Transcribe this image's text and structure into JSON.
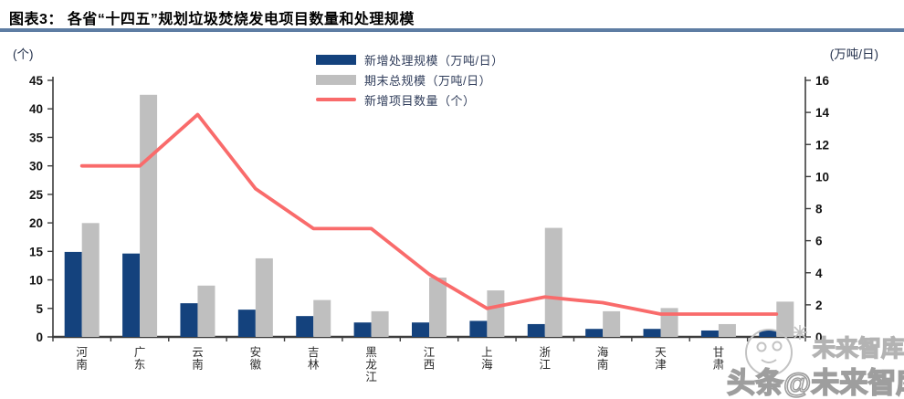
{
  "header": {
    "title": "图表3：  各省“十四五”规划垃圾焚烧发电项目数量和处理规模"
  },
  "watermark": {
    "small_text": "未来智库",
    "big_text": "头条@未来智库"
  },
  "chart_data": {
    "type": "bar+line",
    "categories": [
      "河南",
      "广东",
      "云南",
      "安徽",
      "吉林",
      "黑龙江",
      "江西",
      "上海",
      "浙江",
      "海南",
      "天津",
      "甘肃",
      ""
    ],
    "series": [
      {
        "name": "新增处理规模（万吨/日）",
        "type": "bar",
        "axis": "right",
        "color": "#14427d",
        "values": [
          5.3,
          5.2,
          2.1,
          1.7,
          1.3,
          0.9,
          0.9,
          1.0,
          0.8,
          0.5,
          0.5,
          0.4,
          0.4
        ]
      },
      {
        "name": "期末总规模（万吨/日）",
        "type": "bar",
        "axis": "right",
        "color": "#bfbfbf",
        "values": [
          7.1,
          15.1,
          3.2,
          4.9,
          2.3,
          1.6,
          3.7,
          2.9,
          6.8,
          1.6,
          1.8,
          0.8,
          2.2
        ]
      },
      {
        "name": "新增项目数量（个）",
        "type": "line",
        "axis": "left",
        "color": "#f96b6b",
        "values": [
          30,
          30,
          39,
          26,
          19,
          19,
          11,
          5,
          7,
          6,
          4,
          4,
          4
        ]
      }
    ],
    "left_axis": {
      "unit": "(个)",
      "min": 0,
      "max": 45,
      "step": 5
    },
    "right_axis": {
      "unit": "(万吨/日)",
      "min": 0,
      "max": 16,
      "step": 2
    },
    "grid": false,
    "legend_position": "top-center",
    "note": "13th category label hidden by watermark"
  }
}
